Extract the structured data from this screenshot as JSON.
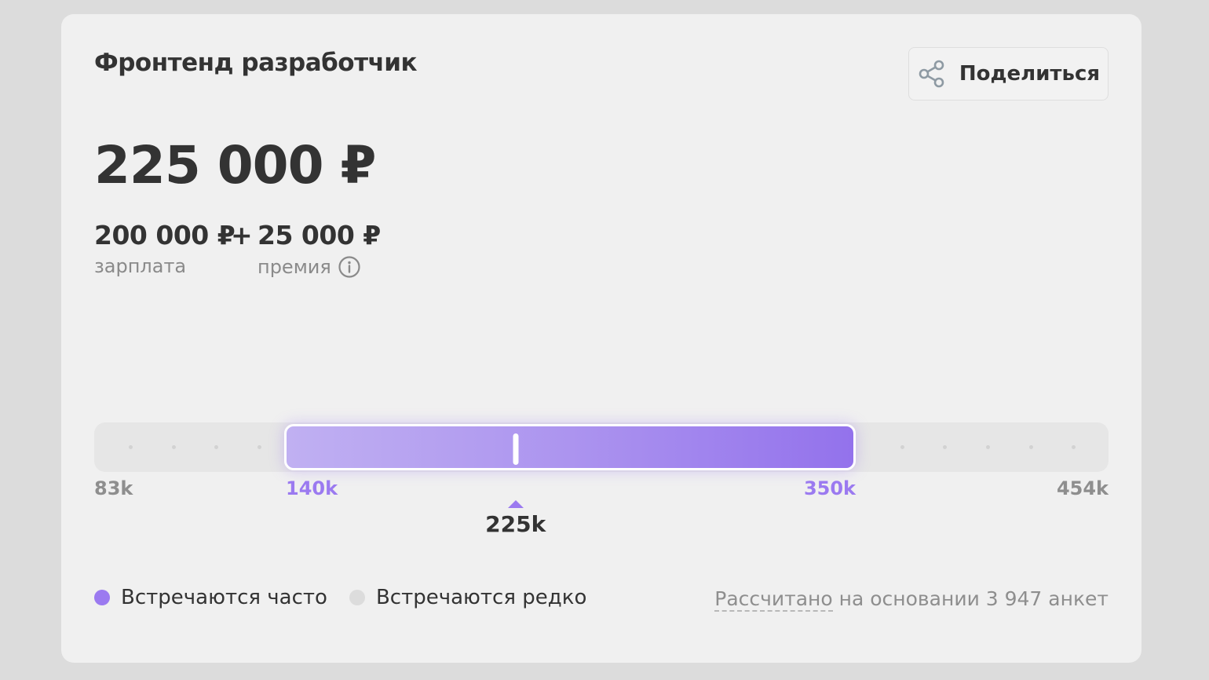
{
  "card": {
    "title": "Фронтенд разработчик",
    "share_label": "Поделиться",
    "total": "225 000 ₽",
    "salary": {
      "amount": "200 000 ₽",
      "caption": "зарплата"
    },
    "plus": "+",
    "bonus": {
      "amount": "25 000 ₽",
      "caption": "премия"
    }
  },
  "range": {
    "min": 83,
    "max": 454,
    "common_low": 140,
    "common_high": 350,
    "median": 225,
    "labels": {
      "min": "83k",
      "common_low": "140k",
      "common_high": "350k",
      "max": "454k",
      "median": "225k"
    }
  },
  "legend": {
    "common": "Встречаются часто",
    "rare": "Встречаются редко"
  },
  "basis": {
    "prefix": "Рассчитано",
    "rest": " на основании 3 947 анкет"
  },
  "colors": {
    "accent": "#9b7af0",
    "rare_dot": "#dcdcdc",
    "text": "#333333",
    "muted": "#8e8e8e",
    "card": "#f0f0f0",
    "page": "#dcdcdc"
  },
  "icons": {
    "share": "share-icon",
    "info": "info-icon"
  }
}
